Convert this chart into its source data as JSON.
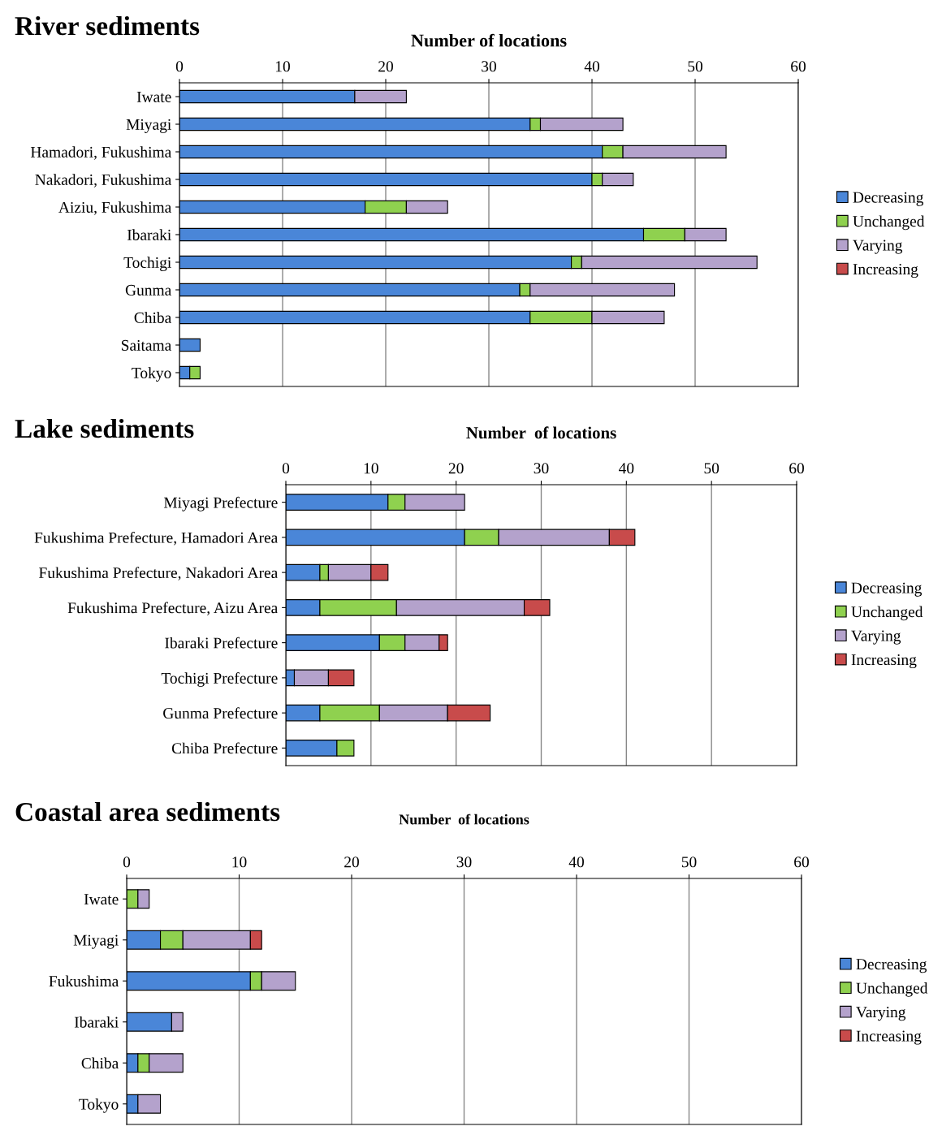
{
  "chart_data": [
    {
      "type": "bar",
      "orientation": "horizontal",
      "stacked": true,
      "title": "River sediments",
      "xlabel": "Number of locations",
      "categories": [
        "Iwate",
        "Miyagi",
        "Hamadori, Fukushima",
        "Nakadori, Fukushima",
        "Aiziu, Fukushima",
        "Ibaraki",
        "Tochigi",
        "Gunma",
        "Chiba",
        "Saitama",
        "Tokyo"
      ],
      "series": [
        {
          "name": "Decreasing",
          "color": "#4a86d8",
          "values": [
            17,
            34,
            41,
            40,
            18,
            45,
            38,
            33,
            34,
            2,
            1
          ]
        },
        {
          "name": "Unchanged",
          "color": "#8fd14f",
          "values": [
            null,
            1,
            2,
            1,
            4,
            4,
            1,
            1,
            6,
            null,
            1
          ]
        },
        {
          "name": "Varying",
          "color": "#b4a2cc",
          "values": [
            5,
            8,
            10,
            3,
            4,
            4,
            17,
            14,
            7,
            null,
            null
          ]
        },
        {
          "name": "Increasing",
          "color": "#c84b4b",
          "values": [
            null,
            null,
            null,
            null,
            null,
            null,
            null,
            null,
            null,
            null,
            null
          ]
        }
      ],
      "xlim": [
        0,
        60
      ],
      "xticks": [
        0,
        10,
        20,
        30,
        40,
        50,
        60
      ],
      "grid": "x",
      "legend": "right"
    },
    {
      "type": "bar",
      "orientation": "horizontal",
      "stacked": true,
      "title": "Lake sediments",
      "xlabel": "Number  of locations",
      "categories": [
        "Miyagi Prefecture",
        "Fukushima Prefecture, Hamadori Area",
        "Fukushima Prefecture, Nakadori Area",
        "Fukushima Prefecture, Aizu Area",
        "Ibaraki Prefecture",
        "Tochigi Prefecture",
        "Gunma Prefecture",
        "Chiba Prefecture"
      ],
      "series": [
        {
          "name": "Decreasing",
          "color": "#4a86d8",
          "values": [
            12,
            21,
            4,
            4,
            11,
            1,
            4,
            6
          ]
        },
        {
          "name": "Unchanged",
          "color": "#8fd14f",
          "values": [
            2,
            4,
            1,
            9,
            3,
            null,
            7,
            2
          ]
        },
        {
          "name": "Varying",
          "color": "#b4a2cc",
          "values": [
            7,
            13,
            5,
            15,
            4,
            4,
            8,
            null
          ]
        },
        {
          "name": "Increasing",
          "color": "#c84b4b",
          "values": [
            null,
            3,
            2,
            3,
            1,
            3,
            5,
            null
          ]
        }
      ],
      "xlim": [
        0,
        60
      ],
      "xticks": [
        0,
        10,
        20,
        30,
        40,
        50,
        60
      ],
      "grid": "x",
      "legend": "right"
    },
    {
      "type": "bar",
      "orientation": "horizontal",
      "stacked": true,
      "title": "Coastal area sediments",
      "xlabel": "Number  of locations",
      "categories": [
        "Iwate",
        "Miyagi",
        "Fukushima",
        "Ibaraki",
        "Chiba",
        "Tokyo"
      ],
      "series": [
        {
          "name": "Decreasing",
          "color": "#4a86d8",
          "values": [
            null,
            3,
            11,
            4,
            1,
            1
          ]
        },
        {
          "name": "Unchanged",
          "color": "#8fd14f",
          "values": [
            1,
            2,
            1,
            null,
            1,
            null
          ]
        },
        {
          "name": "Varying",
          "color": "#b4a2cc",
          "values": [
            1,
            6,
            3,
            1,
            3,
            2
          ]
        },
        {
          "name": "Increasing",
          "color": "#c84b4b",
          "values": [
            null,
            1,
            null,
            null,
            null,
            null
          ]
        }
      ],
      "xlim": [
        0,
        60
      ],
      "xticks": [
        0,
        10,
        20,
        30,
        40,
        50,
        60
      ],
      "grid": "x",
      "legend": "right"
    }
  ]
}
